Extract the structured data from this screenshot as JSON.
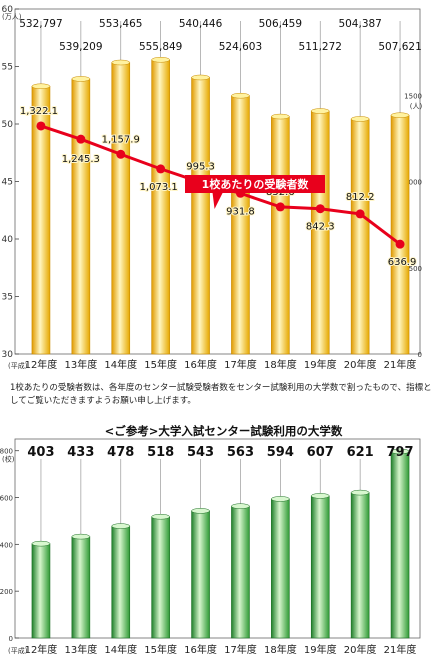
{
  "chart_data": [
    {
      "type": "bar",
      "categories": [
        "12年度",
        "13年度",
        "14年度",
        "15年度",
        "16年度",
        "17年度",
        "18年度",
        "19年度",
        "20年度",
        "21年度"
      ],
      "category_prefix": "(平成)",
      "values": [
        532797,
        539209,
        553465,
        555849,
        540446,
        524603,
        506459,
        511272,
        504387,
        507621
      ],
      "value_labels": [
        "532,797",
        "539,209",
        "553,465",
        "555,849",
        "540,446",
        "524,603",
        "506,459",
        "511,272",
        "504,387",
        "507,621"
      ],
      "yunit": "(万人)",
      "ylim": [
        30,
        60
      ],
      "yticks": [
        30,
        35,
        40,
        45,
        50,
        55,
        60
      ],
      "grid": false,
      "line_series": {
        "name": "1校あたりの受験者数",
        "values": [
          1322.1,
          1245.3,
          1157.9,
          1073.1,
          995.3,
          931.8,
          852.6,
          842.3,
          812.2,
          636.9
        ],
        "labels": [
          "1,322.1",
          "1,245.3",
          "1,157.9",
          "1,073.1",
          "995.3",
          "931.8",
          "852.6",
          "842.3",
          "812.2",
          "636.9"
        ],
        "yunit": "(人)",
        "ylim": [
          0,
          2000
        ],
        "yticks": [
          0,
          500,
          1000,
          1500
        ],
        "color": "#e8001c"
      },
      "colors": {
        "bar": "#f2b600",
        "bar_light": "#fff3b0",
        "line": "#e8001c"
      }
    },
    {
      "type": "bar",
      "title": "<ご参考>大学入試センター試験利用の大学数",
      "categories": [
        "12年度",
        "13年度",
        "14年度",
        "15年度",
        "16年度",
        "17年度",
        "18年度",
        "19年度",
        "20年度",
        "21年度"
      ],
      "category_prefix": "(平成)",
      "values": [
        403,
        433,
        478,
        518,
        543,
        563,
        594,
        607,
        621,
        797
      ],
      "yunit": "(校)",
      "ylim": [
        0,
        850
      ],
      "yticks": [
        0,
        200,
        400,
        600,
        800
      ],
      "grid": false,
      "colors": {
        "bar": "#3a9a3a",
        "bar_light": "#c9f0c0"
      }
    }
  ],
  "note": "1校あたりの受験者数は、各年度のセンター試験受験者数をセンター試験利用の大学数で割ったもので、指標としてご覧いただきますようお願い申し上げます。"
}
